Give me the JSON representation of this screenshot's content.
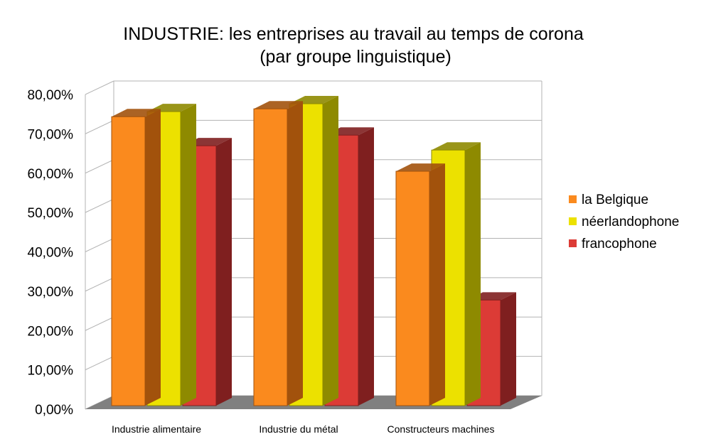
{
  "chart_data": {
    "type": "bar",
    "title": "INDUSTRIE: les entreprises au travail au temps de corona",
    "subtitle": "(par groupe linguistique)",
    "xlabel": "",
    "ylabel": "",
    "categories": [
      "Industrie alimentaire",
      "Industrie du métal",
      "Constructeurs machines"
    ],
    "series": [
      {
        "name": "la Belgique",
        "values": [
          73.6,
          75.6,
          59.7
        ],
        "color": "#fa8a1e",
        "side_color": "#a2520c"
      },
      {
        "name": "néerlandophone",
        "values": [
          74.9,
          76.9,
          65.1
        ],
        "color": "#ece100",
        "side_color": "#8e8a00"
      },
      {
        "name": "francophone",
        "values": [
          66.2,
          68.9,
          26.9
        ],
        "color": "#dc3b36",
        "side_color": "#7f1f1f"
      }
    ],
    "ylim": [
      0,
      80
    ],
    "yticks": [
      "0,00%",
      "10,00%",
      "20,00%",
      "30,00%",
      "40,00%",
      "50,00%",
      "60,00%",
      "70,00%",
      "80,00%"
    ],
    "grid": true,
    "style": "3d",
    "legend_position": "right"
  }
}
